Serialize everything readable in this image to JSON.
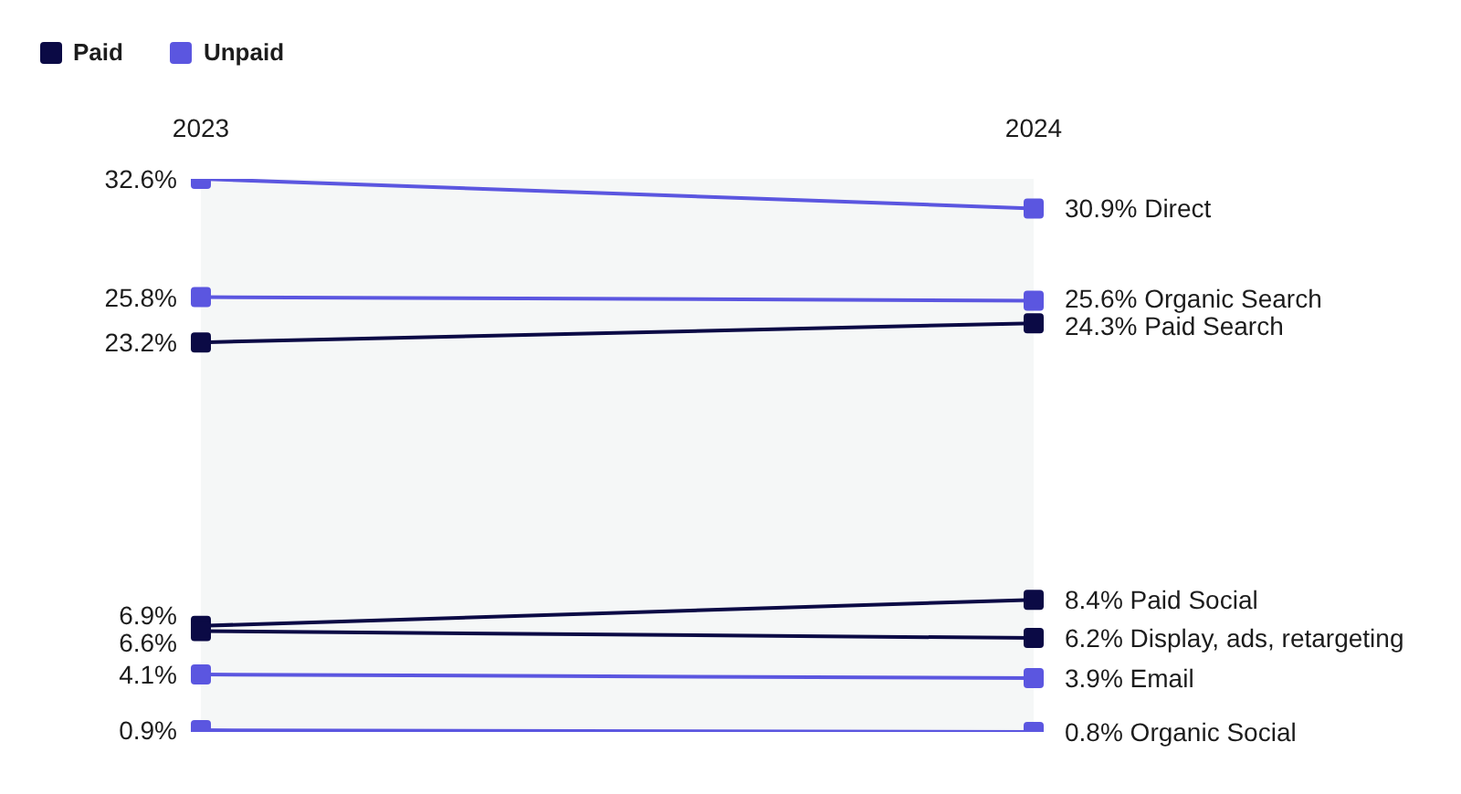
{
  "chart_data": {
    "type": "line",
    "categories": [
      "2023",
      "2024"
    ],
    "legend": "top left",
    "marker": "square",
    "tick_labels": "x",
    "series": [
      {
        "name": "Paid",
        "color": "#0b0a45",
        "values": [
          23.2,
          24.3
        ],
        "value_labels": [
          "23.2%",
          "24.3% Paid Search"
        ]
      },
      {
        "color": "#0b0a45",
        "values": [
          6.9,
          8.4
        ],
        "value_labels": [
          "6.9%",
          "8.4% Paid Social"
        ]
      },
      {
        "color": "#0b0a45",
        "values": [
          6.6,
          6.2
        ],
        "value_labels": [
          "6.6%",
          "6.2% Display, ads, retargeting"
        ]
      },
      {
        "name": "Unpaid",
        "color": "#5b56e0",
        "values": [
          32.6,
          30.9
        ],
        "value_labels": [
          "32.6%",
          "30.9% Direct"
        ]
      },
      {
        "color": "#5b56e0",
        "values": [
          25.8,
          25.6
        ],
        "value_labels": [
          "25.8%",
          "25.6% Organic Search"
        ]
      },
      {
        "color": "#5b56e0",
        "values": [
          4.1,
          3.9
        ],
        "value_labels": [
          "4.1%",
          "3.9% Email"
        ]
      },
      {
        "color": "#5b56e0",
        "values": [
          0.9,
          0.8
        ],
        "value_labels": [
          "0.9%",
          "0.8% Organic Social"
        ]
      }
    ]
  }
}
